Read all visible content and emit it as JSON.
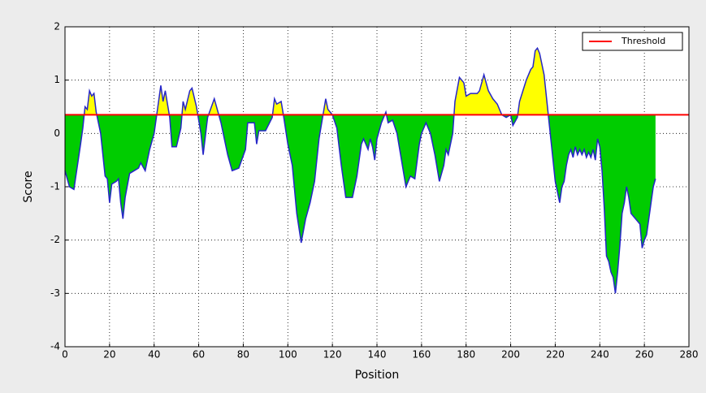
{
  "chart_data": {
    "type": "line",
    "xlabel": "Position",
    "ylabel": "Score",
    "x": [
      0,
      2,
      4,
      7,
      8,
      9,
      10,
      11,
      12,
      13,
      14,
      16,
      18,
      19,
      20,
      21,
      23,
      24,
      25,
      26,
      27,
      29,
      31,
      33,
      34,
      36,
      38,
      40,
      41,
      43,
      44,
      45,
      47,
      48,
      50,
      52,
      53,
      54,
      56,
      57,
      59,
      61,
      62,
      64,
      67,
      69,
      70,
      73,
      75,
      78,
      81,
      82,
      85,
      86,
      87,
      90,
      93,
      94,
      95,
      97,
      98,
      100,
      102,
      104,
      106,
      108,
      110,
      112,
      114,
      116,
      117,
      118,
      120,
      122,
      124,
      126,
      129,
      131,
      133,
      134,
      136,
      137,
      138,
      139,
      140,
      142,
      144,
      145,
      147,
      149,
      151,
      153,
      155,
      157,
      159,
      160,
      162,
      164,
      166,
      168,
      170,
      171,
      172,
      174,
      175,
      177,
      179,
      180,
      182,
      185,
      186,
      188,
      190,
      192,
      194,
      196,
      198,
      200,
      201,
      203,
      204,
      207,
      209,
      210,
      211,
      212,
      213,
      215,
      217,
      219,
      220,
      222,
      223,
      224,
      225,
      226,
      227,
      228,
      229,
      230,
      231,
      232,
      233,
      234,
      235,
      236,
      237,
      238,
      239,
      240,
      241,
      242,
      243,
      244,
      245,
      246,
      247,
      248,
      249,
      250,
      251,
      252,
      253,
      254,
      255,
      256,
      257,
      258,
      259,
      260,
      261,
      262,
      263,
      264,
      265
    ],
    "series": [
      {
        "color": "#2626c8",
        "values": [
          -0.7,
          -1.0,
          -1.05,
          -0.2,
          0.1,
          0.5,
          0.45,
          0.8,
          0.7,
          0.75,
          0.4,
          0.0,
          -0.8,
          -0.85,
          -1.3,
          -0.95,
          -0.9,
          -0.85,
          -1.3,
          -1.6,
          -1.2,
          -0.75,
          -0.7,
          -0.65,
          -0.55,
          -0.7,
          -0.3,
          0.0,
          0.3,
          0.9,
          0.6,
          0.8,
          0.3,
          -0.25,
          -0.25,
          0.1,
          0.6,
          0.45,
          0.8,
          0.85,
          0.5,
          0.0,
          -0.4,
          0.3,
          0.65,
          0.35,
          0.2,
          -0.4,
          -0.7,
          -0.65,
          -0.3,
          0.2,
          0.2,
          -0.2,
          0.05,
          0.05,
          0.3,
          0.65,
          0.55,
          0.6,
          0.35,
          -0.2,
          -0.6,
          -1.5,
          -2.05,
          -1.6,
          -1.3,
          -0.9,
          -0.1,
          0.4,
          0.65,
          0.45,
          0.35,
          0.1,
          -0.6,
          -1.2,
          -1.2,
          -0.8,
          -0.2,
          -0.1,
          -0.3,
          -0.1,
          -0.25,
          -0.5,
          -0.1,
          0.2,
          0.4,
          0.2,
          0.25,
          0.0,
          -0.5,
          -1.0,
          -0.8,
          -0.85,
          -0.2,
          0.0,
          0.2,
          0.0,
          -0.4,
          -0.9,
          -0.6,
          -0.3,
          -0.4,
          0.0,
          0.6,
          1.05,
          0.95,
          0.7,
          0.75,
          0.75,
          0.8,
          1.1,
          0.8,
          0.65,
          0.55,
          0.35,
          0.3,
          0.35,
          0.15,
          0.3,
          0.6,
          1.0,
          1.2,
          1.25,
          1.55,
          1.6,
          1.5,
          1.1,
          0.3,
          -0.5,
          -0.9,
          -1.3,
          -1.0,
          -0.9,
          -0.6,
          -0.4,
          -0.3,
          -0.45,
          -0.25,
          -0.4,
          -0.3,
          -0.4,
          -0.3,
          -0.45,
          -0.35,
          -0.45,
          -0.3,
          -0.5,
          -0.1,
          -0.25,
          -0.7,
          -1.4,
          -2.3,
          -2.4,
          -2.6,
          -2.7,
          -3.0,
          -2.6,
          -2.1,
          -1.5,
          -1.3,
          -1.0,
          -1.2,
          -1.5,
          -1.55,
          -1.6,
          -1.65,
          -1.7,
          -2.15,
          -2.0,
          -1.9,
          -1.6,
          -1.3,
          -1.0,
          -0.85
        ]
      }
    ],
    "threshold": {
      "name": "Threshold",
      "value": 0.35,
      "color": "#ff0000"
    },
    "above_color": "#ffff00",
    "below_color": "#00cc00",
    "xlim": [
      0,
      280
    ],
    "xticks": [
      0,
      20,
      40,
      60,
      80,
      100,
      120,
      140,
      160,
      180,
      200,
      220,
      240,
      260,
      280
    ],
    "ylim": [
      -4,
      2
    ],
    "yticks": [
      -4,
      -3,
      -2,
      -1,
      0,
      1,
      2
    ],
    "grid": true,
    "legend": "upper right"
  }
}
